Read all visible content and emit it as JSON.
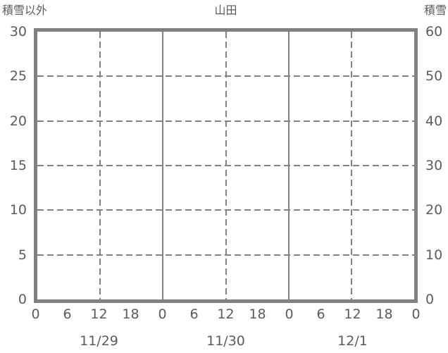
{
  "title": "山田",
  "left_axis": {
    "title": "積雪以外"
  },
  "right_axis": {
    "title": "積雪"
  },
  "chart_data": {
    "type": "line",
    "title": "山田",
    "series": [],
    "x_hour_ticks": [
      "0",
      "6",
      "12",
      "18",
      "0",
      "6",
      "12",
      "18",
      "0",
      "6",
      "12",
      "18",
      "0"
    ],
    "x_date_labels": [
      "11/29",
      "11/30",
      "12/1"
    ],
    "y_left": {
      "label": "積雪以外",
      "min": 0,
      "max": 30,
      "step": 5,
      "ticks": [
        "30",
        "25",
        "20",
        "15",
        "10",
        "5",
        "0"
      ]
    },
    "y_right": {
      "label": "積雪",
      "min": 0,
      "max": 60,
      "step": 10,
      "ticks": [
        "60",
        "50",
        "40",
        "30",
        "20",
        "10",
        "0"
      ]
    },
    "grid": {
      "horizontal_style": "dashed",
      "noon_vertical_style": "dashed",
      "midnight_vertical_style": "solid"
    },
    "colors": {
      "line_gray": "#828282",
      "border_gray": "#818181",
      "text_gray": "#5c5c5c",
      "background": "#ffffff"
    }
  }
}
